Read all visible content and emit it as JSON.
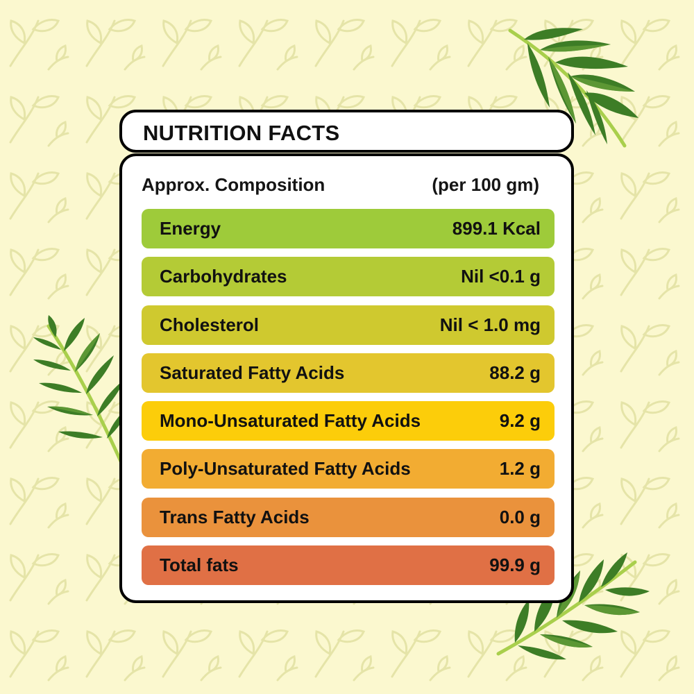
{
  "title": "NUTRITION FACTS",
  "header": {
    "label": "Approx. Composition",
    "unit": "(per 100 gm)"
  },
  "rows": [
    {
      "name": "Energy",
      "value": "899.1 Kcal",
      "color": "#9ecb3a"
    },
    {
      "name": "Carbohydrates",
      "value": "Nil <0.1 g",
      "color": "#b4cb36"
    },
    {
      "name": "Cholesterol",
      "value": "Nil < 1.0 mg",
      "color": "#cfc92f"
    },
    {
      "name": "Saturated Fatty Acids",
      "value": "88.2 g",
      "color": "#e3c62e"
    },
    {
      "name": "Mono-Unsaturated Fatty Acids",
      "value": "9.2 g",
      "color": "#fccd0a"
    },
    {
      "name": "Poly-Unsaturated Fatty Acids",
      "value": "1.2 g",
      "color": "#f2ac32"
    },
    {
      "name": "Trans Fatty Acids",
      "value": "0.0 g",
      "color": "#ea923c"
    },
    {
      "name": "Total fats",
      "value": "99.9 g",
      "color": "#e07045"
    }
  ],
  "colors": {
    "background": "#fbf8cf",
    "pattern": "#e5e4a8",
    "leaf_dark": "#2f6e22",
    "leaf_mid": "#4b8a2c",
    "leaf_light": "#8fbe3e",
    "stem": "#a9cf4c"
  },
  "decorations": [
    "leaf-pattern-background",
    "palm-leaf-top-right",
    "palm-leaf-left",
    "palm-leaf-bottom-right"
  ]
}
